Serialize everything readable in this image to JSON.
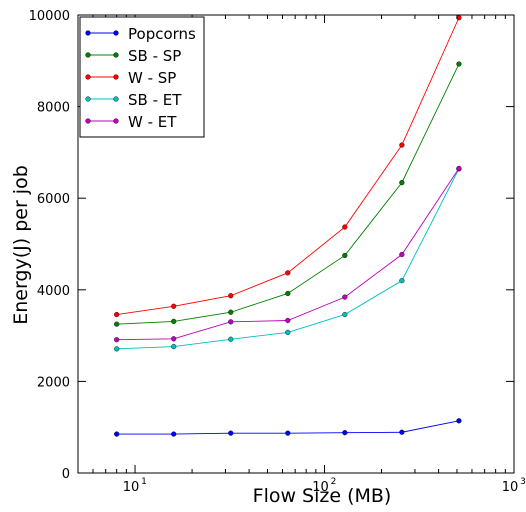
{
  "chart_data": {
    "type": "line",
    "title": "",
    "xlabel": "Flow Size (MB)",
    "ylabel": "Energy(J) per job",
    "xscale": "log",
    "xlim": [
      5,
      1000
    ],
    "ylim": [
      0,
      10000
    ],
    "x": [
      8,
      16,
      32,
      64,
      128,
      256,
      512
    ],
    "x_ticks": [
      {
        "value": 10,
        "label": "10",
        "exp": "1"
      },
      {
        "value": 100,
        "label": "10",
        "exp": "2"
      },
      {
        "value": 1000,
        "label": "10",
        "exp": "3"
      }
    ],
    "y_ticks": [
      {
        "value": 0,
        "label": "0"
      },
      {
        "value": 2000,
        "label": "2000"
      },
      {
        "value": 4000,
        "label": "4000"
      },
      {
        "value": 6000,
        "label": "6000"
      },
      {
        "value": 8000,
        "label": "8000"
      },
      {
        "value": 10000,
        "label": "10000"
      }
    ],
    "grid": false,
    "legend_position": "top-left",
    "series": [
      {
        "name": "Popcorns",
        "color": "#0000ff",
        "values": [
          850,
          850,
          870,
          870,
          880,
          890,
          1140
        ]
      },
      {
        "name": "SB - SP",
        "color": "#008000",
        "values": [
          3250,
          3310,
          3510,
          3920,
          4750,
          6340,
          8930
        ]
      },
      {
        "name": "W - SP",
        "color": "#ff0000",
        "values": [
          3460,
          3640,
          3870,
          4370,
          5370,
          7160,
          9940
        ]
      },
      {
        "name": "SB - ET",
        "color": "#00bfbf",
        "values": [
          2710,
          2760,
          2920,
          3070,
          3460,
          4200,
          6640
        ]
      },
      {
        "name": "W - ET",
        "color": "#bf00bf",
        "values": [
          2910,
          2930,
          3300,
          3330,
          3840,
          4770,
          6650
        ]
      }
    ]
  }
}
